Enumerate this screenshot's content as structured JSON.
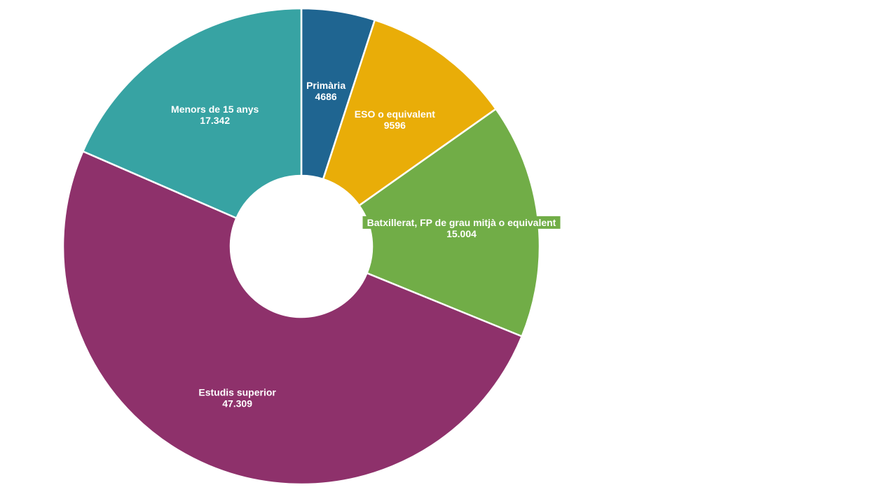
{
  "chart_data": {
    "type": "pie",
    "donut": true,
    "slices": [
      {
        "label": "Primària",
        "value": 4686,
        "value_label": "4686",
        "color": "#1f6591"
      },
      {
        "label": "ESO o equivalent",
        "value": 9596,
        "value_label": "9596",
        "color": "#e9ad08"
      },
      {
        "label": "Batxillerat, FP de grau mitjà o equivalent",
        "value": 15004,
        "value_label": "15.004",
        "color": "#71ad47"
      },
      {
        "label": "Estudis superior",
        "value": 47309,
        "value_label": "47.309",
        "color": "#8e316b"
      },
      {
        "label": "Menors de 15 anys",
        "value": 17342,
        "value_label": "17.342",
        "color": "#37a3a3"
      }
    ]
  }
}
